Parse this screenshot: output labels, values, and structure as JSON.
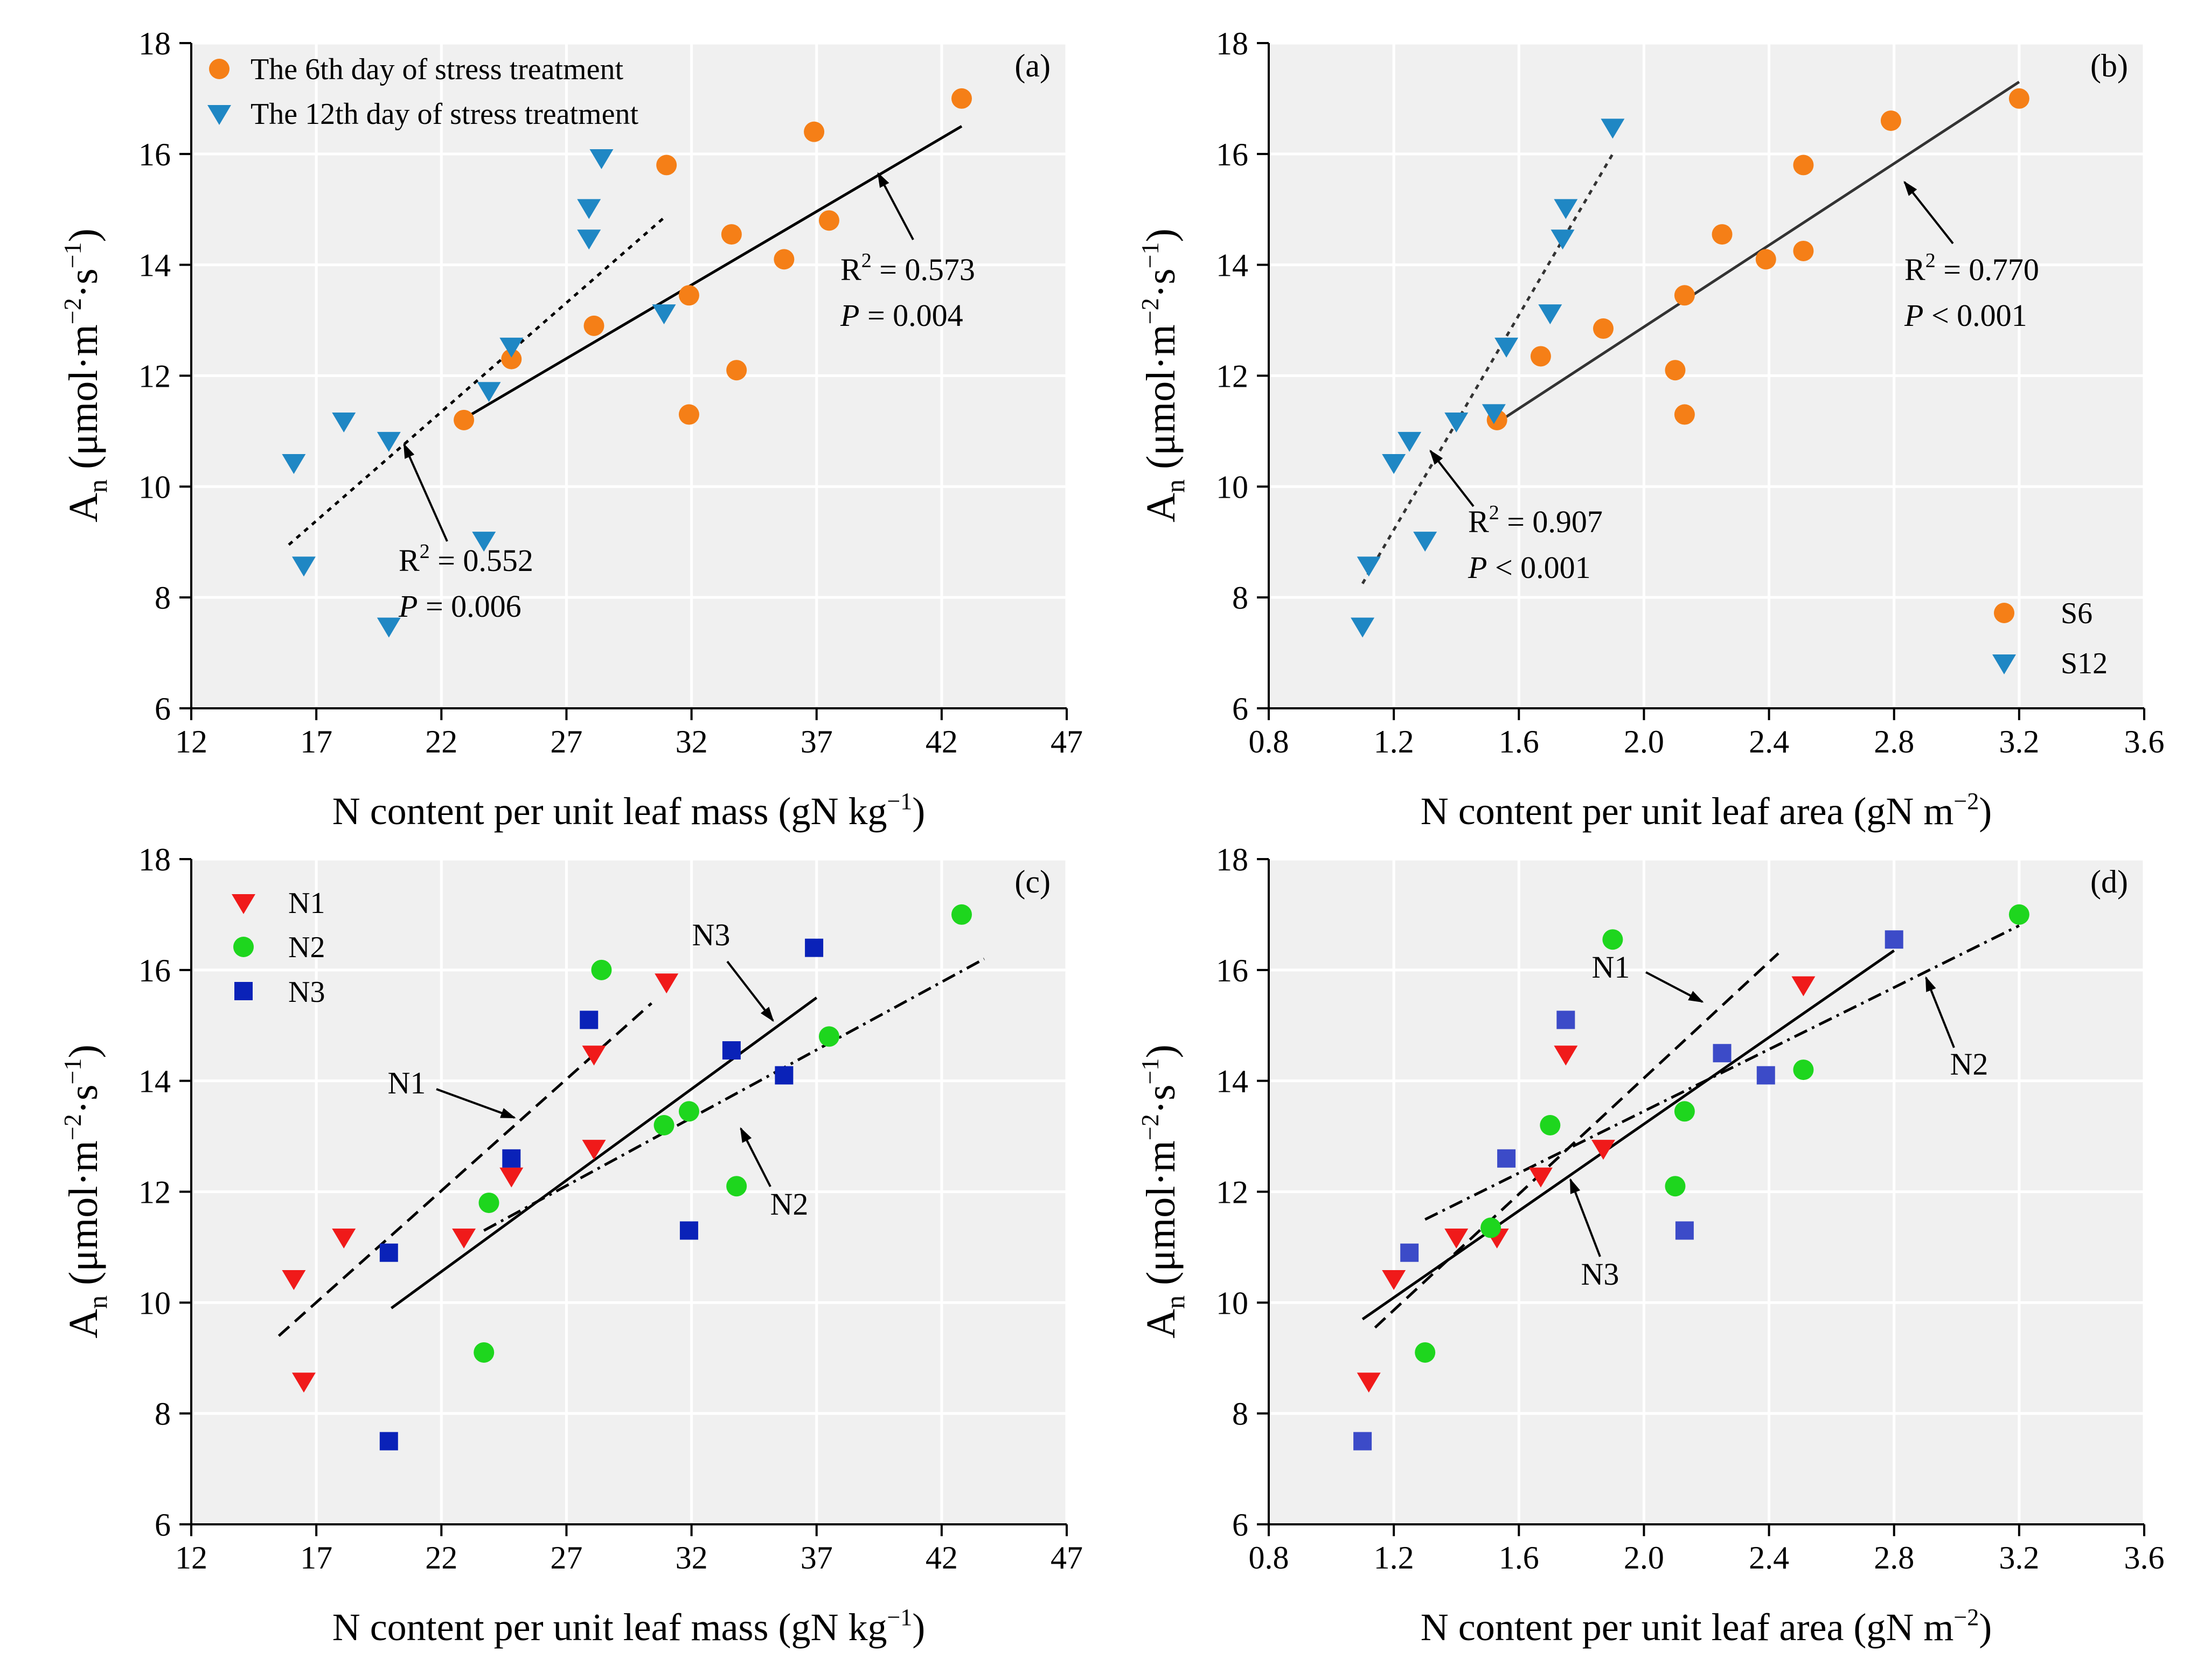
{
  "chart_data": [
    {
      "panel": "a",
      "type": "scatter",
      "label": "(a)",
      "xlabel": "N content per unit leaf mass",
      "xunit_base": "gN kg",
      "xunit_exp": "−1",
      "ylabel_main": "A",
      "ylabel_sub": "n",
      "ylabel_units": [
        "(μmol·m",
        "−2",
        "·s",
        "−1",
        ")"
      ],
      "xlim": [
        12,
        47
      ],
      "ylim": [
        6,
        18
      ],
      "xticks": [
        12,
        17,
        22,
        27,
        32,
        37,
        42,
        47
      ],
      "xtick_labels": [
        "12",
        "17",
        "22",
        "27",
        "32",
        "37",
        "42",
        "47"
      ],
      "yticks": [
        6,
        8,
        10,
        12,
        14,
        16,
        18
      ],
      "ytick_labels": [
        "6",
        "8",
        "10",
        "12",
        "14",
        "16",
        "18"
      ],
      "legend_position": "top-left",
      "series": [
        {
          "name": "The 6th day of stress treatment",
          "marker": "circle",
          "color": "#F57F17",
          "points": [
            [
              22.9,
              11.2
            ],
            [
              24.8,
              12.3
            ],
            [
              28.1,
              12.9
            ],
            [
              31.0,
              15.8
            ],
            [
              31.9,
              11.3
            ],
            [
              31.9,
              13.45
            ],
            [
              33.6,
              14.55
            ],
            [
              33.8,
              12.1
            ],
            [
              35.7,
              14.1
            ],
            [
              36.9,
              16.4
            ],
            [
              37.5,
              14.8
            ],
            [
              42.8,
              17.0
            ]
          ]
        },
        {
          "name": "The 12th day of stress treatment",
          "marker": "triangle-down",
          "color": "#1F87C4",
          "points": [
            [
              16.1,
              10.45
            ],
            [
              16.5,
              8.6
            ],
            [
              18.1,
              11.2
            ],
            [
              19.9,
              10.85
            ],
            [
              19.9,
              7.5
            ],
            [
              23.7,
              9.05
            ],
            [
              23.9,
              11.75
            ],
            [
              24.8,
              12.55
            ],
            [
              27.9,
              15.05
            ],
            [
              27.9,
              14.5
            ],
            [
              28.4,
              15.95
            ],
            [
              30.9,
              13.15
            ]
          ]
        }
      ],
      "fits": [
        {
          "series": "The 12th day of stress treatment",
          "style": "dotted",
          "x": [
            15.9,
            30.9
          ],
          "y": [
            8.95,
            14.85
          ]
        },
        {
          "series": "The 6th day of stress treatment",
          "style": "solid",
          "x": [
            23.0,
            42.8
          ],
          "y": [
            11.25,
            16.5
          ]
        }
      ],
      "annotations": [
        {
          "r2_value": "0.573",
          "p_text": " = 0.004"
        },
        {
          "r2_value": "0.552",
          "p_text": " = 0.006"
        }
      ]
    },
    {
      "panel": "b",
      "type": "scatter",
      "label": "(b)",
      "xlabel": "N content per unit leaf area",
      "xunit_base": "gN m",
      "xunit_exp": "−2",
      "ylabel_main": "A",
      "ylabel_sub": "n",
      "ylabel_units": [
        "(μmol·m",
        "−2",
        "·s",
        "−1",
        ")"
      ],
      "xlim": [
        0.8,
        3.6
      ],
      "ylim": [
        6,
        18
      ],
      "xticks": [
        0.8,
        1.2,
        1.6,
        2.0,
        2.4,
        2.8,
        3.2,
        3.6
      ],
      "xtick_labels": [
        "0.8",
        "1.2",
        "1.6",
        "2.0",
        "2.4",
        "2.8",
        "3.2",
        "3.6"
      ],
      "yticks": [
        6,
        8,
        10,
        12,
        14,
        16,
        18
      ],
      "ytick_labels": [
        "6",
        "8",
        "10",
        "12",
        "14",
        "16",
        "18"
      ],
      "legend_position": "bottom-right",
      "series": [
        {
          "name": "S6",
          "marker": "circle",
          "color": "#F57F17",
          "points": [
            [
              1.53,
              11.2
            ],
            [
              1.67,
              12.35
            ],
            [
              1.87,
              12.85
            ],
            [
              2.1,
              12.1
            ],
            [
              2.13,
              11.3
            ],
            [
              2.13,
              13.45
            ],
            [
              2.25,
              14.55
            ],
            [
              2.39,
              14.1
            ],
            [
              2.51,
              14.25
            ],
            [
              2.51,
              15.8
            ],
            [
              2.79,
              16.6
            ],
            [
              3.2,
              17.0
            ]
          ]
        },
        {
          "name": "S12",
          "marker": "triangle-down",
          "color": "#1F87C4",
          "points": [
            [
              1.1,
              7.5
            ],
            [
              1.12,
              8.6
            ],
            [
              1.2,
              10.45
            ],
            [
              1.25,
              10.85
            ],
            [
              1.3,
              9.05
            ],
            [
              1.4,
              11.2
            ],
            [
              1.52,
              11.35
            ],
            [
              1.56,
              12.55
            ],
            [
              1.7,
              13.15
            ],
            [
              1.74,
              14.5
            ],
            [
              1.75,
              15.05
            ],
            [
              1.9,
              16.5
            ]
          ]
        }
      ],
      "fits": [
        {
          "series": "S12",
          "style": "dotted",
          "x": [
            1.1,
            1.9
          ],
          "y": [
            8.25,
            16.0
          ]
        },
        {
          "series": "S6",
          "style": "solid",
          "x": [
            1.53,
            3.2
          ],
          "y": [
            11.15,
            17.3
          ]
        }
      ],
      "annotations": [
        {
          "r2_value": "0.770",
          "p_text": " < 0.001"
        },
        {
          "r2_value": "0.907",
          "p_text": " < 0.001"
        }
      ]
    },
    {
      "panel": "c",
      "type": "scatter",
      "label": "(c)",
      "xlabel": "N content per unit leaf mass",
      "xunit_base": "gN kg",
      "xunit_exp": "−1",
      "ylabel_main": "A",
      "ylabel_sub": "n",
      "ylabel_units": [
        "(μmol·m",
        "−2",
        "·s",
        "−1",
        ")"
      ],
      "xlim": [
        12,
        47
      ],
      "ylim": [
        6,
        18
      ],
      "xticks": [
        12,
        17,
        22,
        27,
        32,
        37,
        42,
        47
      ],
      "xtick_labels": [
        "12",
        "17",
        "22",
        "27",
        "32",
        "37",
        "42",
        "47"
      ],
      "yticks": [
        6,
        8,
        10,
        12,
        14,
        16,
        18
      ],
      "ytick_labels": [
        "6",
        "8",
        "10",
        "12",
        "14",
        "16",
        "18"
      ],
      "legend_position": "top-left",
      "series": [
        {
          "name": "N1",
          "marker": "triangle-down",
          "color": "#F01A1A",
          "points": [
            [
              16.1,
              10.45
            ],
            [
              16.5,
              8.6
            ],
            [
              18.1,
              11.2
            ],
            [
              22.9,
              11.2
            ],
            [
              24.8,
              12.3
            ],
            [
              28.1,
              14.5
            ],
            [
              28.1,
              12.8
            ],
            [
              31.0,
              15.8
            ]
          ]
        },
        {
          "name": "N2",
          "marker": "circle",
          "color": "#1ED61E",
          "points": [
            [
              23.7,
              9.1
            ],
            [
              23.9,
              11.8
            ],
            [
              28.4,
              16.0
            ],
            [
              30.9,
              13.2
            ],
            [
              31.9,
              13.45
            ],
            [
              33.8,
              12.1
            ],
            [
              37.5,
              14.8
            ],
            [
              42.8,
              17.0
            ]
          ]
        },
        {
          "name": "N3",
          "marker": "square",
          "color": "#0A22B8",
          "points": [
            [
              19.9,
              10.9
            ],
            [
              19.9,
              7.5
            ],
            [
              24.8,
              12.6
            ],
            [
              27.9,
              15.1
            ],
            [
              31.9,
              11.3
            ],
            [
              33.6,
              14.55
            ],
            [
              35.7,
              14.1
            ],
            [
              36.9,
              16.4
            ]
          ]
        }
      ],
      "fits": [
        {
          "series": "N1",
          "style": "dashed",
          "x": [
            15.5,
            30.4
          ],
          "y": [
            9.4,
            15.4
          ]
        },
        {
          "series": "N3",
          "style": "solid",
          "x": [
            20.0,
            37.0
          ],
          "y": [
            9.9,
            15.5
          ]
        },
        {
          "series": "N2",
          "style": "dashdot",
          "x": [
            23.7,
            43.7
          ],
          "y": [
            11.3,
            16.2
          ]
        }
      ],
      "annotations": [
        {
          "text": "N1"
        },
        {
          "text": "N3"
        },
        {
          "text": "N2"
        }
      ]
    },
    {
      "panel": "d",
      "type": "scatter",
      "label": "(d)",
      "xlabel": "N content per unit leaf area",
      "xunit_base": "gN m",
      "xunit_exp": "−2",
      "ylabel_main": "A",
      "ylabel_sub": "n",
      "ylabel_units": [
        "(μmol·m",
        "−2",
        "·s",
        "−1",
        ")"
      ],
      "xlim": [
        0.8,
        3.6
      ],
      "ylim": [
        6,
        18
      ],
      "xticks": [
        0.8,
        1.2,
        1.6,
        2.0,
        2.4,
        2.8,
        3.2,
        3.6
      ],
      "xtick_labels": [
        "0.8",
        "1.2",
        "1.6",
        "2.0",
        "2.4",
        "2.8",
        "3.2",
        "3.6"
      ],
      "yticks": [
        6,
        8,
        10,
        12,
        14,
        16,
        18
      ],
      "ytick_labels": [
        "6",
        "8",
        "10",
        "12",
        "14",
        "16",
        "18"
      ],
      "series": [
        {
          "name": "N1",
          "marker": "triangle-down",
          "color": "#F01A1A",
          "points": [
            [
              1.12,
              8.6
            ],
            [
              1.2,
              10.45
            ],
            [
              1.4,
              11.2
            ],
            [
              1.53,
              11.2
            ],
            [
              1.67,
              12.3
            ],
            [
              1.75,
              14.5
            ],
            [
              1.87,
              12.8
            ],
            [
              2.51,
              15.75
            ]
          ]
        },
        {
          "name": "N2",
          "marker": "circle",
          "color": "#1ED61E",
          "points": [
            [
              1.3,
              9.1
            ],
            [
              1.51,
              11.35
            ],
            [
              1.7,
              13.2
            ],
            [
              1.9,
              16.55
            ],
            [
              2.1,
              12.1
            ],
            [
              2.13,
              13.45
            ],
            [
              2.51,
              14.2
            ],
            [
              3.2,
              17.0
            ]
          ]
        },
        {
          "name": "N3",
          "marker": "square",
          "color": "#3C4BC8",
          "points": [
            [
              1.1,
              7.5
            ],
            [
              1.25,
              10.9
            ],
            [
              1.56,
              12.6
            ],
            [
              1.75,
              15.1
            ],
            [
              2.13,
              11.3
            ],
            [
              2.25,
              14.5
            ],
            [
              2.39,
              14.1
            ],
            [
              2.8,
              16.55
            ]
          ]
        }
      ],
      "fits": [
        {
          "series": "N1",
          "style": "dashed",
          "x": [
            1.14,
            2.43
          ],
          "y": [
            9.55,
            16.3
          ]
        },
        {
          "series": "N3",
          "style": "solid",
          "x": [
            1.1,
            2.8
          ],
          "y": [
            9.7,
            16.35
          ]
        },
        {
          "series": "N2",
          "style": "dashdot",
          "x": [
            1.3,
            3.2
          ],
          "y": [
            11.5,
            16.8
          ]
        }
      ],
      "annotations": [
        {
          "text": "N1"
        },
        {
          "text": "N2"
        },
        {
          "text": "N3"
        }
      ]
    }
  ]
}
